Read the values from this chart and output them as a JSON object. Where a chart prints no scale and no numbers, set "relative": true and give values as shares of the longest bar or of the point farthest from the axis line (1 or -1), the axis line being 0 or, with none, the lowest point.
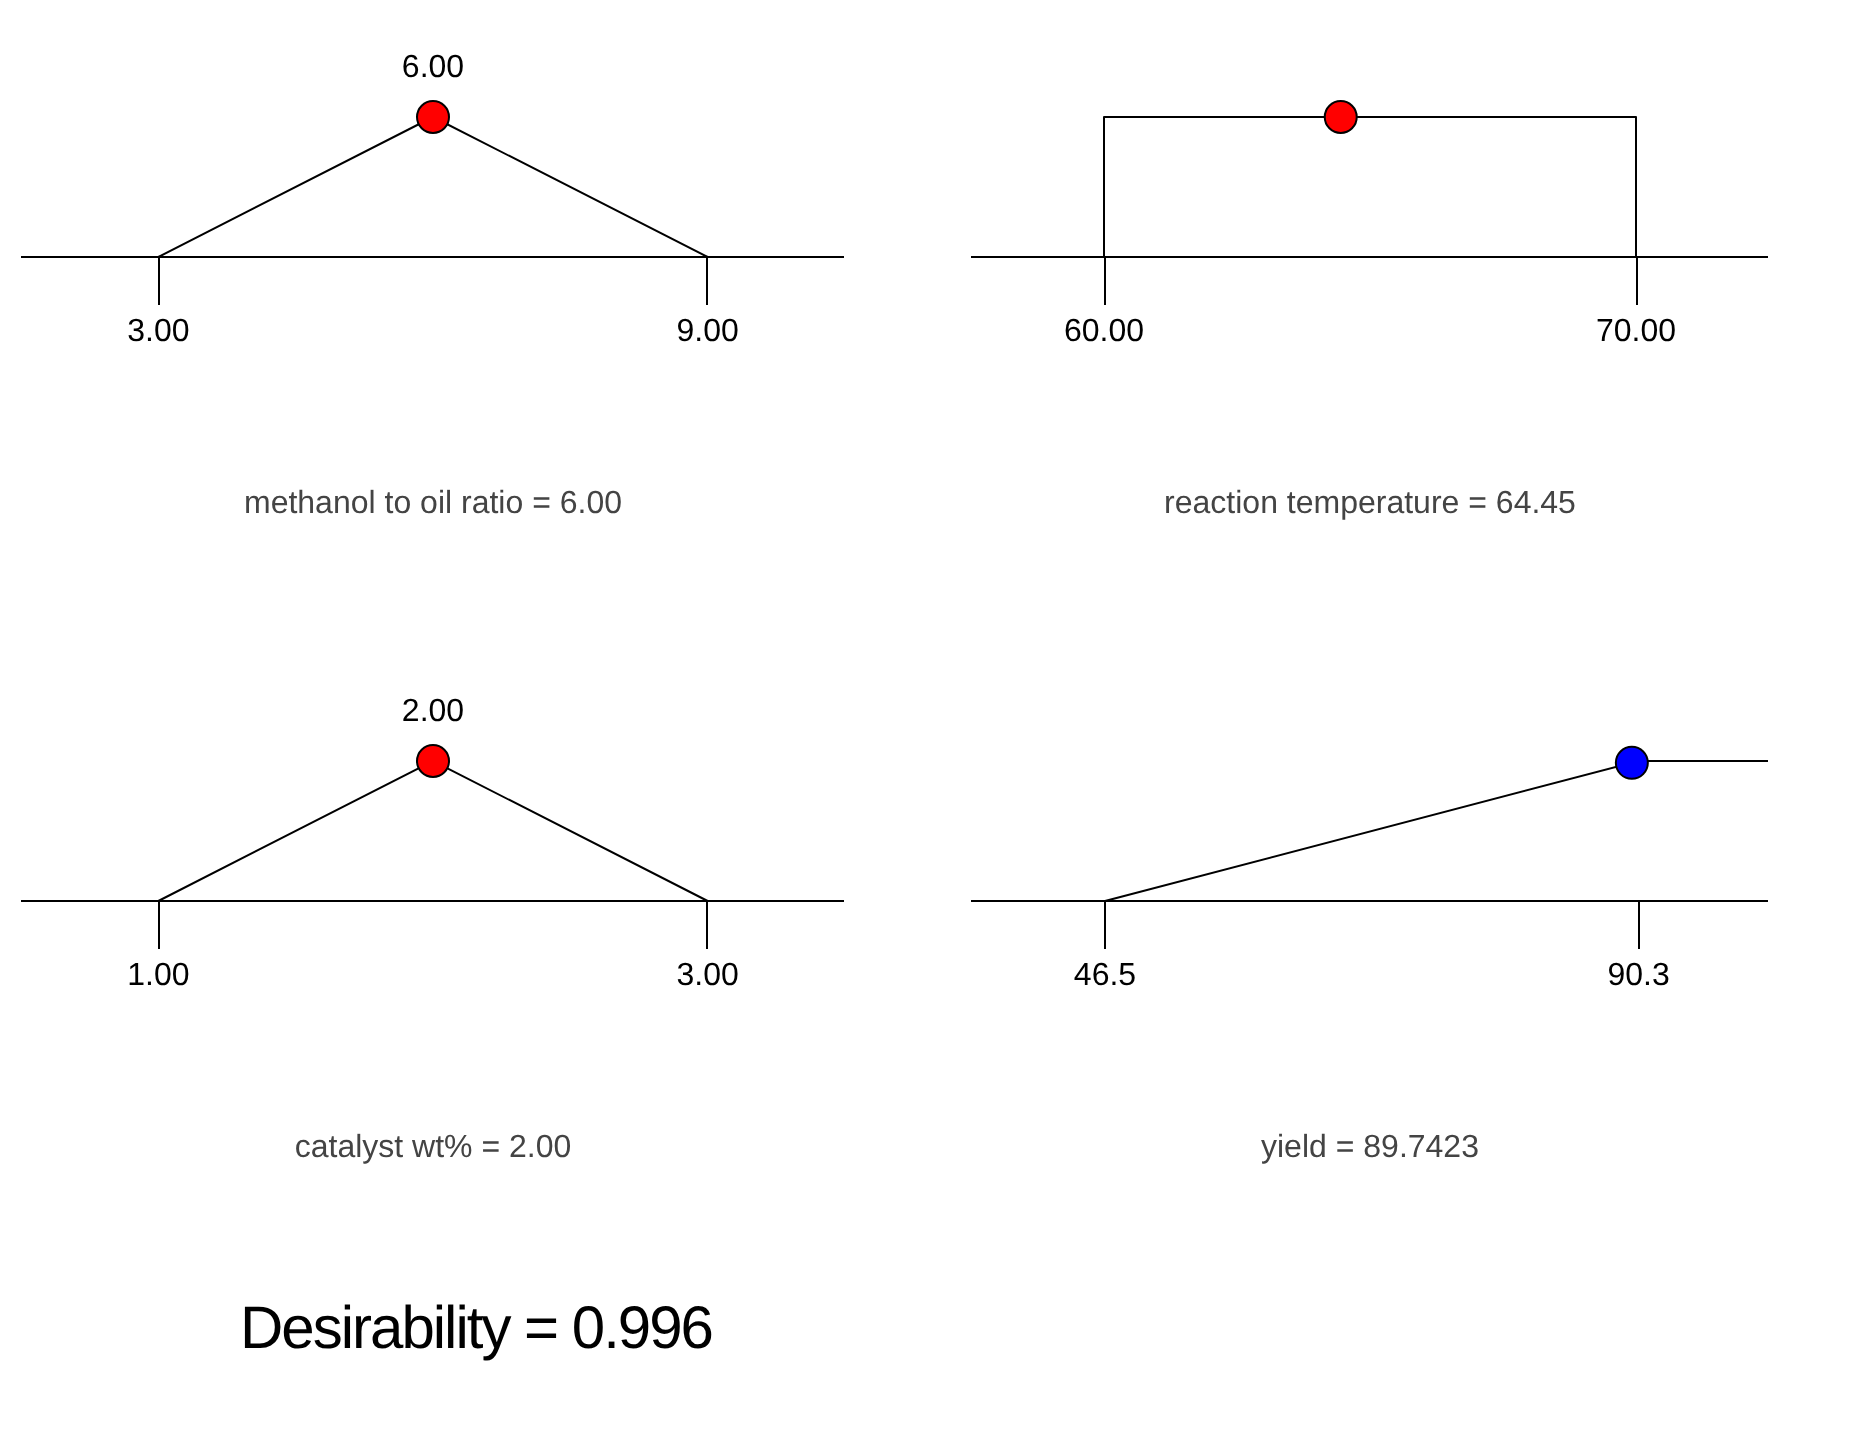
{
  "chart_data": [
    {
      "type": "line",
      "relative": true,
      "xlabel": "methanol to oil ratio = 6.00",
      "xlim": [
        1.5,
        10.5
      ],
      "xticks": [
        {
          "value": 3,
          "label": "3.00"
        },
        {
          "value": 9,
          "label": "9.00"
        }
      ],
      "annotations": [
        {
          "text": "6.00",
          "x": 6,
          "y": 1
        }
      ],
      "series": [
        {
          "type": "line",
          "color": "#000000",
          "x": [
            1.5,
            3,
            6,
            9,
            10.5
          ],
          "values": [
            0,
            0,
            1,
            0,
            0
          ]
        },
        {
          "type": "scatter",
          "marker": "circle",
          "color": "#ff0000",
          "x": [
            6
          ],
          "values": [
            1
          ]
        }
      ]
    },
    {
      "type": "line",
      "relative": true,
      "xlabel": "reaction temperature = 64.45",
      "xlim": [
        57.5,
        72.5
      ],
      "xticks": [
        {
          "value": 60,
          "label": "60.00"
        },
        {
          "value": 70,
          "label": "70.00"
        }
      ],
      "series": [
        {
          "type": "line",
          "color": "#000000",
          "x": [
            57.5,
            60,
            60,
            70,
            70,
            72.5
          ],
          "values": [
            0,
            0,
            1,
            1,
            0,
            0
          ]
        },
        {
          "type": "scatter",
          "marker": "circle",
          "color": "#ff0000",
          "x": [
            64.45
          ],
          "values": [
            1
          ]
        }
      ]
    },
    {
      "type": "line",
      "relative": true,
      "xlabel": "catalyst wt% = 2.00",
      "xlim": [
        0.5,
        3.5
      ],
      "xticks": [
        {
          "value": 1,
          "label": "1.00"
        },
        {
          "value": 3,
          "label": "3.00"
        }
      ],
      "annotations": [
        {
          "text": "2.00",
          "x": 2,
          "y": 1
        }
      ],
      "series": [
        {
          "type": "line",
          "color": "#000000",
          "x": [
            0.5,
            1,
            2,
            3,
            3.5
          ],
          "values": [
            0,
            0,
            1,
            0,
            0
          ]
        },
        {
          "type": "scatter",
          "marker": "circle",
          "color": "#ff0000",
          "x": [
            2
          ],
          "values": [
            1
          ]
        }
      ]
    },
    {
      "type": "line",
      "relative": true,
      "xlabel": "yield = 89.7423",
      "xlim": [
        35.5,
        101
      ],
      "xticks": [
        46.5,
        90.3
      ],
      "series": [
        {
          "type": "line",
          "color": "#000000",
          "x": [
            35.5,
            46.5,
            90.3,
            101
          ],
          "values": [
            0,
            0,
            1,
            1
          ]
        },
        {
          "type": "scatter",
          "marker": "circle",
          "color": "#0000ff",
          "x": [
            89.7423
          ],
          "values": [
            0.987
          ]
        }
      ]
    },
    {
      "type": "other",
      "annotations": [
        "Desirability = 0.996"
      ]
    }
  ]
}
